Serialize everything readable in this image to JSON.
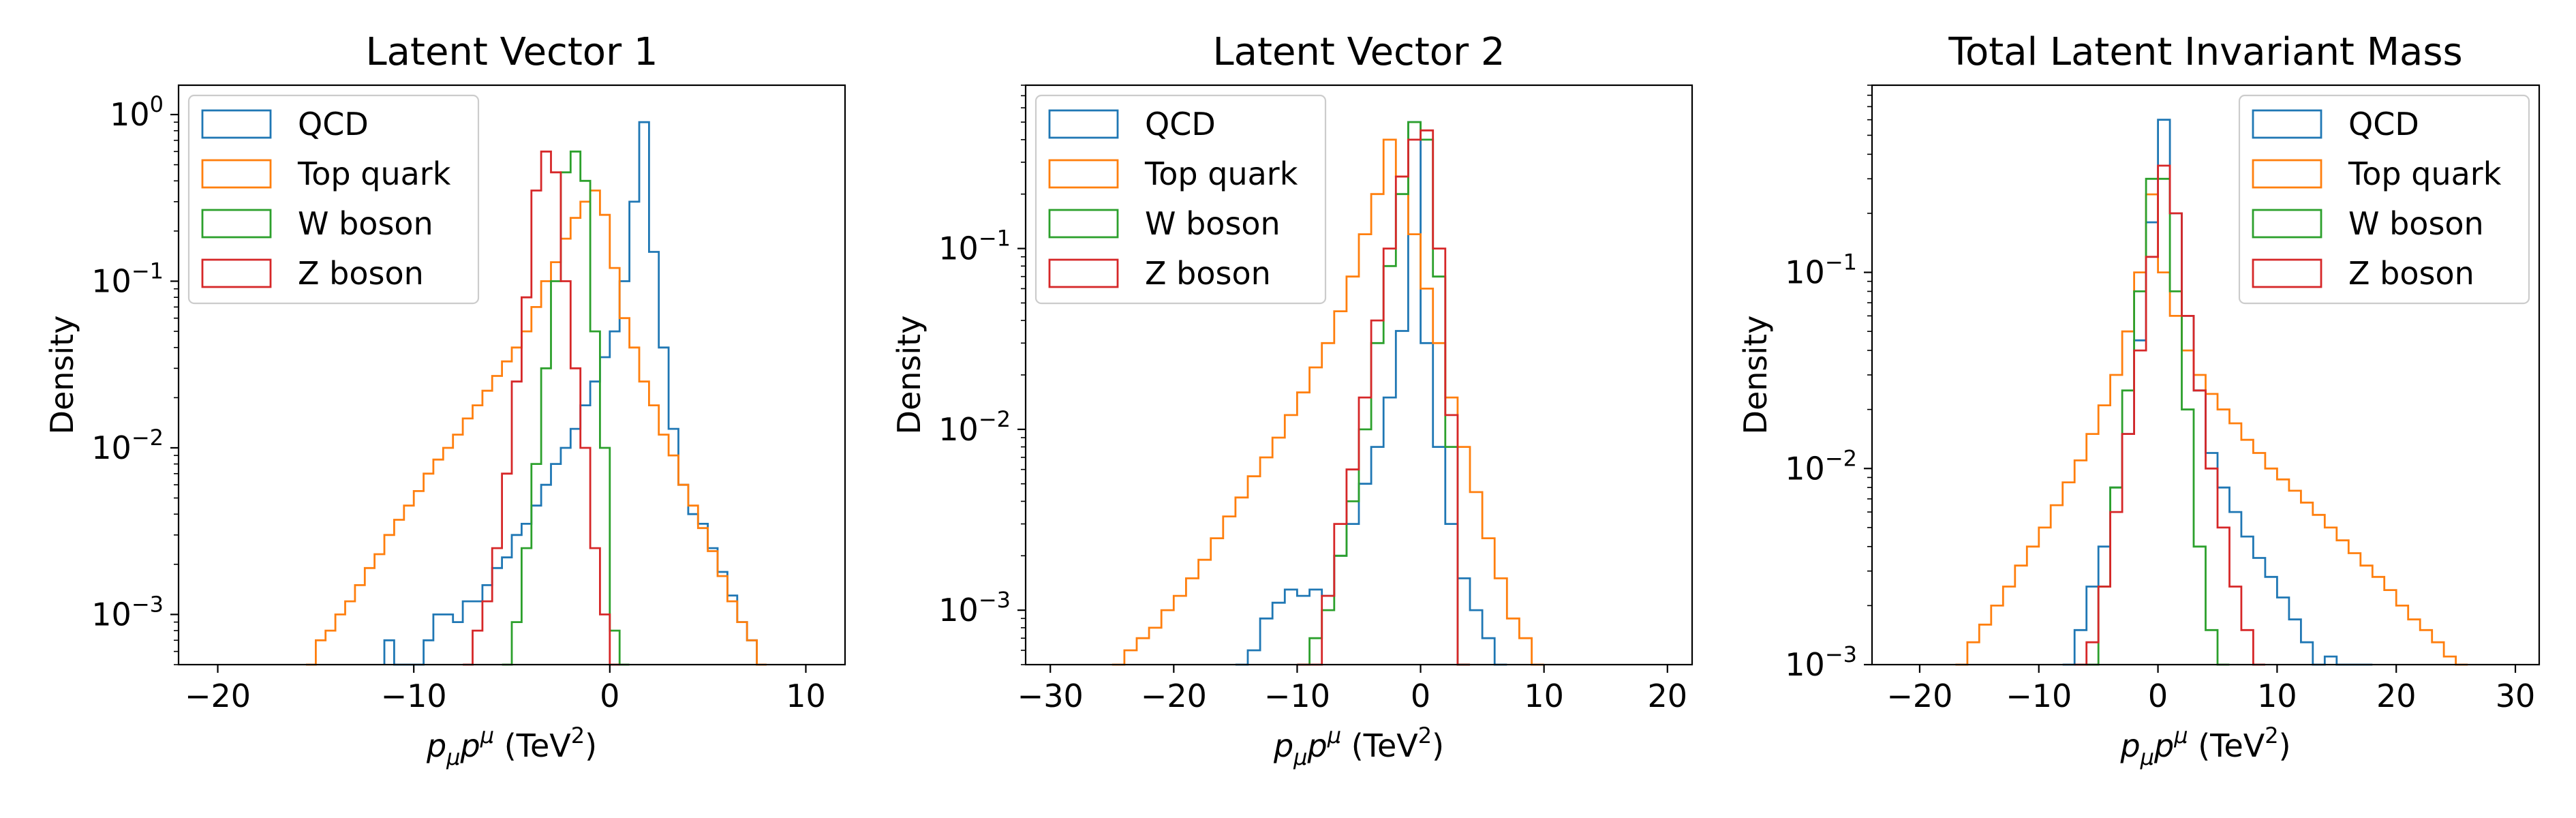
{
  "figure": {
    "ylabel": "Density",
    "xlabel_parts": {
      "p1": "p",
      "s1": "μ",
      "p2": "p",
      "s2": "μ",
      "unit_open": " (TeV",
      "unit_exp": "2",
      "unit_close": ")"
    }
  },
  "chart_data": [
    {
      "type": "histogram",
      "title": "Latent Vector 1",
      "xlim": [
        -22,
        12
      ],
      "ylim": [
        0.0005,
        1.5
      ],
      "yscale": "log",
      "xticks": [
        -20,
        -10,
        0,
        10
      ],
      "xticklabels": [
        "−20",
        "−10",
        "0",
        "10"
      ],
      "yticks_exp": [
        0,
        -1,
        -2,
        -3
      ],
      "legend_placement": "upper left",
      "bin_width": 0.5,
      "series": [
        {
          "name": "QCD",
          "color": "#1f77b4",
          "bin_start": -11.5,
          "values": [
            0.0007,
            0.0005,
            0.0005,
            0.0005,
            0.0007,
            0.001,
            0.001,
            0.0009,
            0.0012,
            0.0012,
            0.0015,
            0.0019,
            0.0022,
            0.003,
            0.0035,
            0.0045,
            0.006,
            0.008,
            0.01,
            0.013,
            0.018,
            0.025,
            0.035,
            0.05,
            0.1,
            0.3,
            0.9,
            0.15,
            0.04,
            0.013,
            0.006,
            0.004,
            0.0035,
            0.0025,
            0.0018,
            0.0013,
            0.0009,
            0.0007
          ]
        },
        {
          "name": "Top quark",
          "color": "#ff7f0e",
          "bin_start": -15.5,
          "values": [
            0.0005,
            0.0007,
            0.0008,
            0.001,
            0.0012,
            0.0015,
            0.0019,
            0.0023,
            0.003,
            0.0037,
            0.0045,
            0.0055,
            0.007,
            0.0085,
            0.01,
            0.012,
            0.015,
            0.018,
            0.022,
            0.027,
            0.033,
            0.04,
            0.05,
            0.07,
            0.1,
            0.13,
            0.18,
            0.24,
            0.3,
            0.35,
            0.25,
            0.12,
            0.06,
            0.04,
            0.025,
            0.018,
            0.012,
            0.009,
            0.006,
            0.0045,
            0.0033,
            0.0024,
            0.0017,
            0.0012,
            0.0009,
            0.0007,
            0.0005
          ]
        },
        {
          "name": "W boson",
          "color": "#2ca02c",
          "bin_start": -5.5,
          "values": [
            0.0005,
            0.0009,
            0.0025,
            0.008,
            0.03,
            0.1,
            0.45,
            0.6,
            0.4,
            0.05,
            0.01,
            0.0008,
            0.0005
          ]
        },
        {
          "name": "Z boson",
          "color": "#d62728",
          "bin_start": -7.5,
          "values": [
            0.0005,
            0.0008,
            0.0012,
            0.0025,
            0.007,
            0.025,
            0.08,
            0.35,
            0.6,
            0.45,
            0.1,
            0.03,
            0.01,
            0.0025,
            0.001,
            0.0005
          ]
        }
      ]
    },
    {
      "type": "histogram",
      "title": "Latent Vector 2",
      "xlim": [
        -32,
        22
      ],
      "ylim": [
        0.0005,
        0.8
      ],
      "yscale": "log",
      "xticks": [
        -30,
        -20,
        -10,
        0,
        10,
        20
      ],
      "xticklabels": [
        "−30",
        "−20",
        "−10",
        "0",
        "10",
        "20"
      ],
      "yticks_exp": [
        -1,
        -2,
        -3
      ],
      "legend_placement": "upper left",
      "bin_width": 1,
      "series": [
        {
          "name": "QCD",
          "color": "#1f77b4",
          "bin_start": -15,
          "values": [
            0.0005,
            0.0006,
            0.0009,
            0.0011,
            0.0013,
            0.0012,
            0.0013,
            0.0012,
            0.002,
            0.003,
            0.005,
            0.008,
            0.015,
            0.035,
            0.5,
            0.03,
            0.008,
            0.003,
            0.0015,
            0.001,
            0.0007,
            0.0005
          ]
        },
        {
          "name": "Top quark",
          "color": "#ff7f0e",
          "bin_start": -25,
          "values": [
            0.0005,
            0.0006,
            0.0007,
            0.0008,
            0.001,
            0.0012,
            0.0015,
            0.0019,
            0.0025,
            0.0033,
            0.0042,
            0.0055,
            0.007,
            0.009,
            0.012,
            0.016,
            0.022,
            0.03,
            0.045,
            0.07,
            0.12,
            0.2,
            0.4,
            0.25,
            0.12,
            0.06,
            0.03,
            0.015,
            0.008,
            0.0045,
            0.0025,
            0.0015,
            0.0009,
            0.0007,
            0.0005
          ]
        },
        {
          "name": "W boson",
          "color": "#2ca02c",
          "bin_start": -10,
          "values": [
            0.0005,
            0.0007,
            0.001,
            0.002,
            0.004,
            0.01,
            0.03,
            0.08,
            0.2,
            0.5,
            0.4,
            0.07,
            0.008,
            0.0005
          ]
        },
        {
          "name": "Z boson",
          "color": "#d62728",
          "bin_start": -10,
          "values": [
            0.0005,
            0.0005,
            0.0012,
            0.003,
            0.006,
            0.015,
            0.04,
            0.1,
            0.25,
            0.4,
            0.45,
            0.1,
            0.012,
            0.0005
          ]
        }
      ]
    },
    {
      "type": "histogram",
      "title": "Total Latent Invariant Mass",
      "xlim": [
        -24,
        32
      ],
      "ylim": [
        0.001,
        0.9
      ],
      "yscale": "log",
      "xticks": [
        -20,
        -10,
        0,
        10,
        20,
        30
      ],
      "xticklabels": [
        "−20",
        "−10",
        "0",
        "10",
        "20",
        "30"
      ],
      "yticks_exp": [
        -1,
        -2,
        -3
      ],
      "legend_placement": "upper right",
      "bin_width": 1,
      "series": [
        {
          "name": "QCD",
          "color": "#1f77b4",
          "bin_start": -8,
          "values": [
            0.001,
            0.0015,
            0.0025,
            0.004,
            0.008,
            0.015,
            0.045,
            0.18,
            0.6,
            0.2,
            0.06,
            0.025,
            0.012,
            0.008,
            0.006,
            0.0045,
            0.0035,
            0.0028,
            0.0022,
            0.0017,
            0.0013,
            0.001,
            0.0011,
            0.001,
            0.001,
            0.001
          ]
        },
        {
          "name": "Top quark",
          "color": "#ff7f0e",
          "bin_start": -17,
          "values": [
            0.001,
            0.0013,
            0.0016,
            0.002,
            0.0025,
            0.0032,
            0.004,
            0.005,
            0.0065,
            0.0085,
            0.011,
            0.015,
            0.021,
            0.03,
            0.05,
            0.1,
            0.25,
            0.1,
            0.06,
            0.04,
            0.03,
            0.024,
            0.02,
            0.017,
            0.014,
            0.012,
            0.01,
            0.0088,
            0.0077,
            0.0067,
            0.0058,
            0.005,
            0.0043,
            0.0037,
            0.0032,
            0.0028,
            0.0024,
            0.002,
            0.0017,
            0.0015,
            0.0013,
            0.0011,
            0.001
          ]
        },
        {
          "name": "W boson",
          "color": "#2ca02c",
          "bin_start": -6,
          "values": [
            0.001,
            0.0025,
            0.008,
            0.025,
            0.08,
            0.3,
            0.3,
            0.08,
            0.02,
            0.004,
            0.0015,
            0.001
          ]
        },
        {
          "name": "Z boson",
          "color": "#d62728",
          "bin_start": -7,
          "values": [
            0.001,
            0.0013,
            0.0025,
            0.006,
            0.015,
            0.04,
            0.12,
            0.35,
            0.2,
            0.06,
            0.025,
            0.01,
            0.005,
            0.0025,
            0.0015,
            0.001
          ]
        }
      ]
    }
  ]
}
